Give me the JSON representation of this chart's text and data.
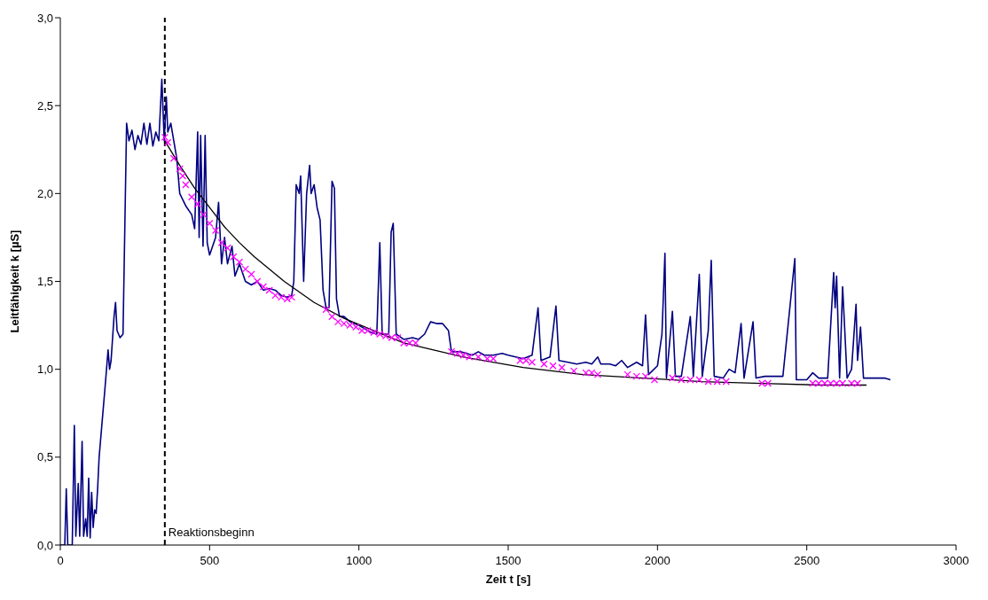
{
  "chart_data": {
    "type": "line",
    "xlabel": "Zeit t [s]",
    "ylabel": "Leitfähigkeit k [µS]",
    "xlim": [
      0,
      3000
    ],
    "xticks": [
      0,
      500,
      1000,
      1500,
      2000,
      2500,
      3000
    ],
    "ylim": [
      0,
      3
    ],
    "yticks": [
      {
        "value": 0,
        "label": "0,0"
      },
      {
        "value": 0.5,
        "label": "0,5"
      },
      {
        "value": 1,
        "label": "1,0"
      },
      {
        "value": 1.5,
        "label": "1,5"
      },
      {
        "value": 2,
        "label": "2,0"
      },
      {
        "value": 2.5,
        "label": "2,5"
      },
      {
        "value": 3,
        "label": "3,0"
      }
    ],
    "grid": false,
    "ref_lines": [
      {
        "axis": "x",
        "value": 350,
        "label": "Reaktionsbeginn",
        "color": "#000000",
        "line_style": "dashed"
      }
    ],
    "series": [
      {
        "color": "#000080",
        "marker": "none",
        "x": [
          0,
          15,
          20,
          25,
          40,
          47,
          52,
          60,
          65,
          73,
          78,
          85,
          90,
          95,
          100,
          105,
          110,
          115,
          120,
          125,
          130,
          140,
          150,
          160,
          165,
          170,
          180,
          185,
          190,
          200,
          210,
          222,
          230,
          240,
          250,
          260,
          270,
          280,
          290,
          300,
          310,
          320,
          330,
          340,
          348,
          355,
          360,
          370,
          380,
          390,
          400,
          420,
          440,
          450,
          460,
          465,
          470,
          478,
          485,
          492,
          500,
          520,
          530,
          540,
          550,
          560,
          575,
          585,
          600,
          620,
          640,
          660,
          680,
          700,
          720,
          740,
          760,
          775,
          782,
          790,
          800,
          805,
          815,
          825,
          835,
          840,
          850,
          860,
          870,
          880,
          890,
          900,
          910,
          918,
          925,
          935,
          950,
          970,
          1000,
          1040,
          1060,
          1070,
          1078,
          1100,
          1108,
          1115,
          1125,
          1150,
          1180,
          1200,
          1220,
          1240,
          1260,
          1280,
          1300,
          1310,
          1340,
          1380,
          1400,
          1420,
          1450,
          1480,
          1500,
          1550,
          1580,
          1600,
          1610,
          1640,
          1660,
          1670,
          1700,
          1730,
          1760,
          1780,
          1800,
          1810,
          1840,
          1860,
          1880,
          1900,
          1930,
          1950,
          1960,
          1970,
          2000,
          2015,
          2025,
          2030,
          2050,
          2060,
          2080,
          2110,
          2120,
          2140,
          2150,
          2170,
          2180,
          2190,
          2220,
          2240,
          2260,
          2280,
          2290,
          2320,
          2330,
          2360,
          2390,
          2420,
          2460,
          2465,
          2500,
          2520,
          2540,
          2570,
          2590,
          2595,
          2600,
          2610,
          2620,
          2625,
          2635,
          2650,
          2665,
          2670,
          2680,
          2690,
          2720,
          2760,
          2780
        ],
        "values": [
          0,
          0,
          0.32,
          0,
          0,
          0.68,
          0.05,
          0.35,
          0.05,
          0.59,
          0.05,
          0.15,
          0.05,
          0.38,
          0.04,
          0.3,
          0.1,
          0.2,
          0.18,
          0.32,
          0.5,
          0.7,
          0.9,
          1.11,
          1.0,
          1.05,
          1.3,
          1.38,
          1.22,
          1.18,
          1.2,
          2.4,
          2.3,
          2.36,
          2.25,
          2.33,
          2.28,
          2.4,
          2.28,
          2.4,
          2.27,
          2.35,
          2.3,
          2.65,
          2.3,
          2.55,
          2.35,
          2.4,
          2.3,
          2.2,
          2.0,
          1.93,
          1.88,
          1.8,
          2.35,
          1.75,
          2.33,
          1.7,
          2.33,
          1.72,
          1.65,
          1.75,
          1.95,
          1.6,
          1.75,
          1.6,
          1.7,
          1.53,
          1.6,
          1.5,
          1.48,
          1.5,
          1.45,
          1.46,
          1.45,
          1.42,
          1.41,
          1.42,
          1.5,
          2.05,
          2.0,
          2.1,
          1.5,
          2.0,
          2.16,
          2.0,
          2.05,
          1.92,
          1.85,
          1.45,
          1.35,
          1.35,
          2.07,
          2.03,
          1.4,
          1.3,
          1.3,
          1.27,
          1.25,
          1.21,
          1.2,
          1.72,
          1.2,
          1.2,
          1.78,
          1.83,
          1.2,
          1.17,
          1.18,
          1.17,
          1.2,
          1.27,
          1.26,
          1.26,
          1.22,
          1.1,
          1.1,
          1.08,
          1.1,
          1.08,
          1.08,
          1.09,
          1.08,
          1.06,
          1.08,
          1.35,
          1.05,
          1.07,
          1.36,
          1.05,
          1.04,
          1.03,
          1.04,
          1.03,
          1.07,
          1.03,
          1.03,
          1.02,
          1.05,
          1.01,
          1.04,
          1.02,
          1.31,
          0.97,
          1.02,
          1.2,
          1.66,
          0.95,
          1.33,
          0.96,
          0.96,
          1.3,
          0.96,
          1.54,
          0.96,
          1.22,
          1.62,
          0.96,
          0.95,
          1.0,
          0.98,
          1.26,
          0.95,
          1.27,
          0.95,
          0.96,
          0.96,
          0.96,
          1.63,
          0.94,
          0.94,
          0.98,
          0.95,
          0.95,
          1.55,
          1.35,
          1.53,
          0.95,
          1.47,
          1.3,
          0.95,
          1.0,
          1.37,
          1.05,
          1.24,
          0.95,
          0.95,
          0.95,
          0.94
        ]
      },
      {
        "type": "scatter",
        "color": "#ff00ff",
        "marker": "cross",
        "x": [
          350,
          360,
          380,
          400,
          410,
          420,
          440,
          460,
          480,
          500,
          520,
          540,
          560,
          580,
          600,
          620,
          640,
          660,
          680,
          700,
          720,
          740,
          760,
          775,
          890,
          910,
          930,
          950,
          970,
          990,
          1010,
          1030,
          1050,
          1070,
          1090,
          1110,
          1130,
          1150,
          1170,
          1190,
          1310,
          1330,
          1350,
          1370,
          1400,
          1430,
          1450,
          1540,
          1560,
          1580,
          1620,
          1650,
          1680,
          1720,
          1760,
          1780,
          1800,
          1900,
          1930,
          1960,
          1990,
          2050,
          2080,
          2110,
          2140,
          2170,
          2200,
          2230,
          2350,
          2370,
          2520,
          2540,
          2560,
          2580,
          2600,
          2620,
          2650,
          2670
        ],
        "values": [
          2.32,
          2.29,
          2.2,
          2.14,
          2.1,
          2.05,
          1.98,
          1.94,
          1.88,
          1.83,
          1.79,
          1.72,
          1.69,
          1.64,
          1.61,
          1.57,
          1.54,
          1.5,
          1.47,
          1.45,
          1.42,
          1.41,
          1.4,
          1.41,
          1.34,
          1.3,
          1.27,
          1.26,
          1.25,
          1.24,
          1.22,
          1.22,
          1.21,
          1.2,
          1.19,
          1.18,
          1.18,
          1.15,
          1.15,
          1.15,
          1.1,
          1.09,
          1.08,
          1.07,
          1.07,
          1.06,
          1.06,
          1.05,
          1.05,
          1.04,
          1.03,
          1.02,
          1.01,
          0.99,
          0.98,
          0.98,
          0.97,
          0.97,
          0.96,
          0.96,
          0.94,
          0.95,
          0.94,
          0.94,
          0.94,
          0.93,
          0.93,
          0.93,
          0.92,
          0.92,
          0.92,
          0.92,
          0.92,
          0.92,
          0.92,
          0.92,
          0.92,
          0.92
        ]
      },
      {
        "color": "#000000",
        "marker": "none",
        "x": [
          350,
          400,
          450,
          500,
          550,
          600,
          650,
          750,
          850,
          950,
          1050,
          1150,
          1250,
          1350,
          1550,
          1750,
          1950,
          2150,
          2350,
          2550,
          2700
        ],
        "values": [
          2.3,
          2.16,
          2.03,
          1.92,
          1.81,
          1.72,
          1.64,
          1.5,
          1.38,
          1.29,
          1.22,
          1.15,
          1.11,
          1.07,
          1.01,
          0.97,
          0.95,
          0.93,
          0.92,
          0.91,
          0.91
        ]
      }
    ]
  }
}
